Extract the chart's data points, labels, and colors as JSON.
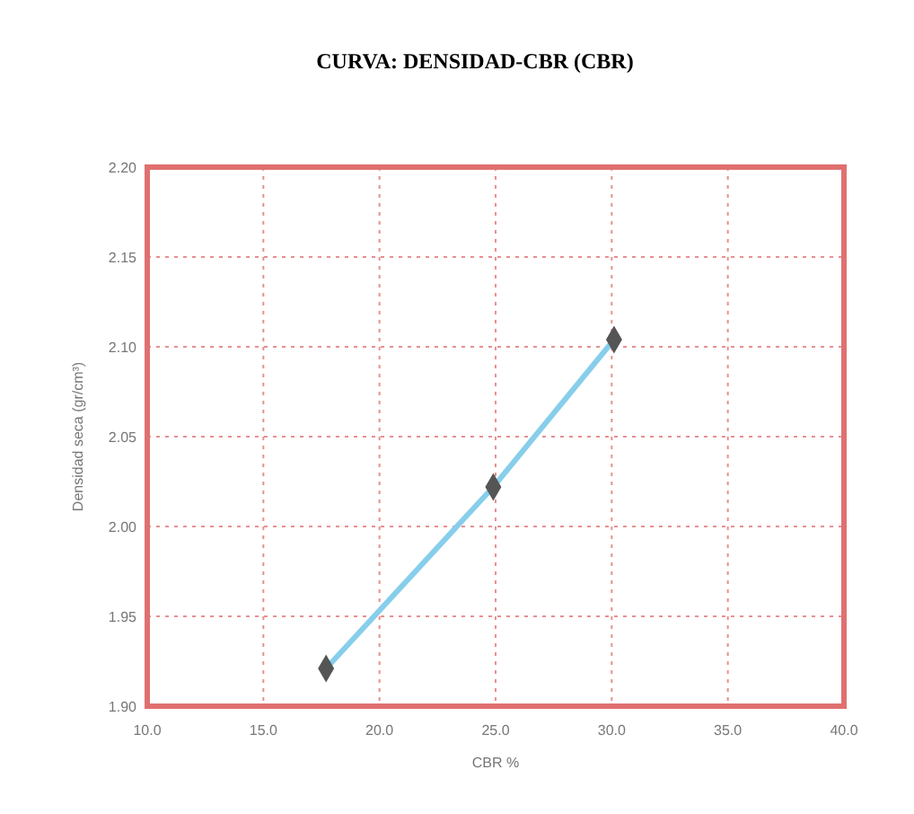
{
  "chart_data": {
    "type": "line",
    "title": "CURVA:  DENSIDAD-CBR (CBR)",
    "xlabel": "CBR %",
    "ylabel": "Densidad seca (gr/cm³)",
    "x": [
      17.7,
      24.9,
      30.1
    ],
    "series": [
      {
        "color": "#87ceeb",
        "values": [
          1.921,
          2.022,
          2.104
        ]
      }
    ],
    "xlim": [
      10,
      40
    ],
    "xticks": [
      {
        "value": 10,
        "label": "10.0"
      },
      {
        "value": 15,
        "label": "15.0"
      },
      {
        "value": 20,
        "label": "20.0"
      },
      {
        "value": 25,
        "label": "25.0"
      },
      {
        "value": 30,
        "label": "30.0"
      },
      {
        "value": 35,
        "label": "35.0"
      },
      {
        "value": 40,
        "label": "40.0"
      }
    ],
    "ylim": [
      1.9,
      2.2
    ],
    "yticks": [
      {
        "value": 1.9,
        "label": "1.90"
      },
      {
        "value": 1.95,
        "label": "1.95"
      },
      {
        "value": 2.0,
        "label": "2.00"
      },
      {
        "value": 2.05,
        "label": "2.05"
      },
      {
        "value": 2.1,
        "label": "2.10"
      },
      {
        "value": 2.15,
        "label": "2.15"
      },
      {
        "value": 2.2,
        "label": "2.20"
      }
    ],
    "grid": true,
    "marker": "diamond",
    "line_style": "solid"
  }
}
